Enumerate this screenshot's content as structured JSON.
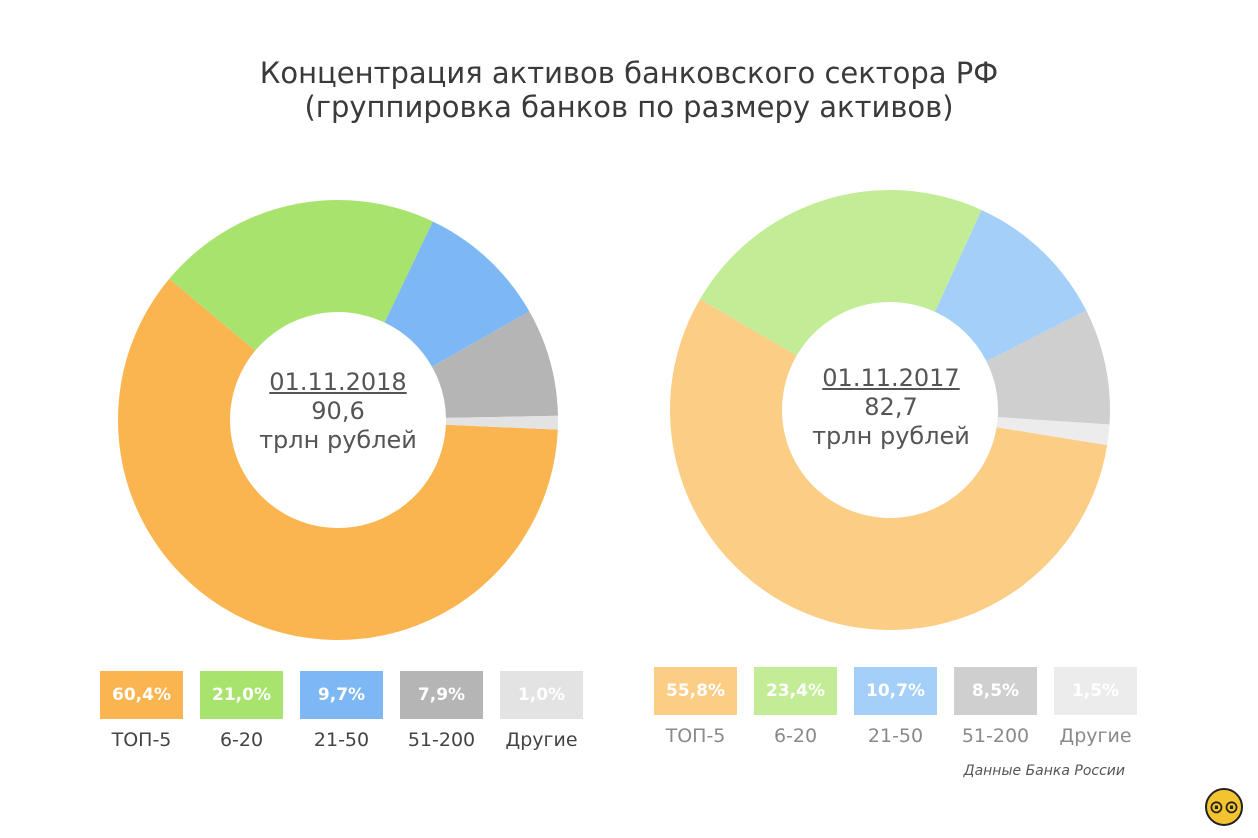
{
  "title": {
    "line1": "Концентрация активов банковского сектора РФ",
    "line2": "(группировка банков по размеру активов)"
  },
  "chart_data": [
    {
      "type": "pie",
      "center": {
        "date": "01.11.2018",
        "value": "90,6",
        "unit": "трлн рублей"
      },
      "categories": [
        "ТОП-5",
        "6-20",
        "21-50",
        "51-200",
        "Другие"
      ],
      "values": [
        60.4,
        21.0,
        9.7,
        7.9,
        1.0
      ],
      "value_labels": [
        "60,4%",
        "21,0%",
        "9,7%",
        "7,9%",
        "1,0%"
      ],
      "colors": [
        "#fbb550",
        "#a8e36e",
        "#7db8f5",
        "#b5b5b5",
        "#e3e3e3"
      ]
    },
    {
      "type": "pie",
      "center": {
        "date": "01.11.2017",
        "value": "82,7",
        "unit": "трлн рублей"
      },
      "categories": [
        "ТОП-5",
        "6-20",
        "21-50",
        "51-200",
        "Другие"
      ],
      "values": [
        55.8,
        23.4,
        10.7,
        8.5,
        1.5
      ],
      "value_labels": [
        "55,8%",
        "23,4%",
        "10,7%",
        "8,5%",
        "1,5%"
      ],
      "colors": [
        "#fccd85",
        "#c3ec97",
        "#a4cff8",
        "#cfcfcf",
        "#ececec"
      ]
    }
  ],
  "source": "Данные Банка России",
  "logo": {
    "icon": "owl-logo-icon",
    "glyph": "⊙⊙"
  }
}
